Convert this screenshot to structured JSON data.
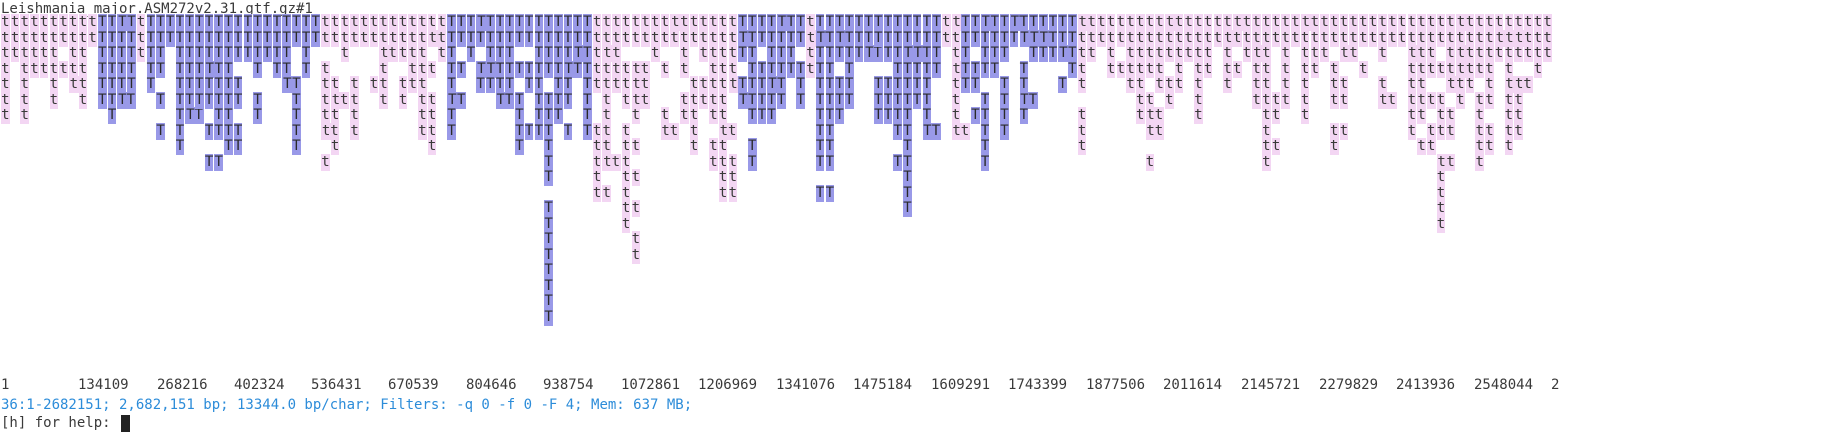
{
  "header": {
    "file_label": "Leishmania_major.ASM272v2.31.gtf.gz#1"
  },
  "ruler": {
    "ticks": [
      "1",
      "134109",
      "268216",
      "402324",
      "536431",
      "670539",
      "804646",
      "938754",
      "1072861",
      "1206969",
      "1341076",
      "1475184",
      "1609291",
      "1743399",
      "1877506",
      "2011614",
      "2145721",
      "2279829",
      "2413936",
      "2548044",
      "2"
    ]
  },
  "status": {
    "text": "36:1-2682151; 2,682,151 bp; 13344.0 bp/char; Filters: -q 0 -f 0 -F 4; Mem: 637 MB;"
  },
  "prompt": {
    "text": "[h] for help: "
  },
  "colors": {
    "forward_glyph": "#f3d6f3",
    "reverse_glyph": "#9999e8",
    "status_text": "#2c8cd9"
  },
  "glyphs": {
    "forward": "t",
    "reverse": "T",
    "forward_pair": "tt",
    "reverse_pair": "TT"
  }
}
